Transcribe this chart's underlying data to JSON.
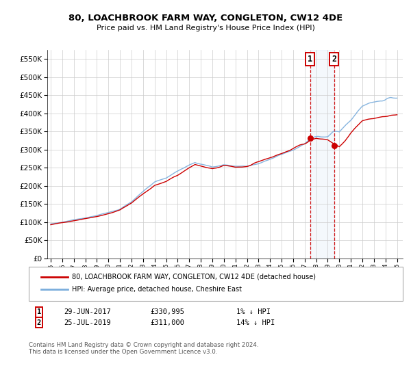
{
  "title": "80, LOACHBROOK FARM WAY, CONGLETON, CW12 4DE",
  "subtitle": "Price paid vs. HM Land Registry's House Price Index (HPI)",
  "legend_line1": "80, LOACHBROOK FARM WAY, CONGLETON, CW12 4DE (detached house)",
  "legend_line2": "HPI: Average price, detached house, Cheshire East",
  "sale1_date": "29-JUN-2017",
  "sale1_price": 330995,
  "sale1_label": "1% ↓ HPI",
  "sale2_date": "25-JUL-2019",
  "sale2_price": 311000,
  "sale2_label": "14% ↓ HPI",
  "footer": "Contains HM Land Registry data © Crown copyright and database right 2024.\nThis data is licensed under the Open Government Licence v3.0.",
  "hpi_color": "#7aaddc",
  "price_color": "#cc0000",
  "sale_dot_color": "#cc0000",
  "background_color": "#ffffff",
  "grid_color": "#cccccc",
  "ylim": [
    0,
    575000
  ],
  "yticks": [
    0,
    50000,
    100000,
    150000,
    200000,
    250000,
    300000,
    350000,
    400000,
    450000,
    500000,
    550000
  ],
  "xlim_start": 1994.7,
  "xlim_end": 2025.5,
  "sale1_x": 2017.46,
  "sale2_x": 2019.54
}
